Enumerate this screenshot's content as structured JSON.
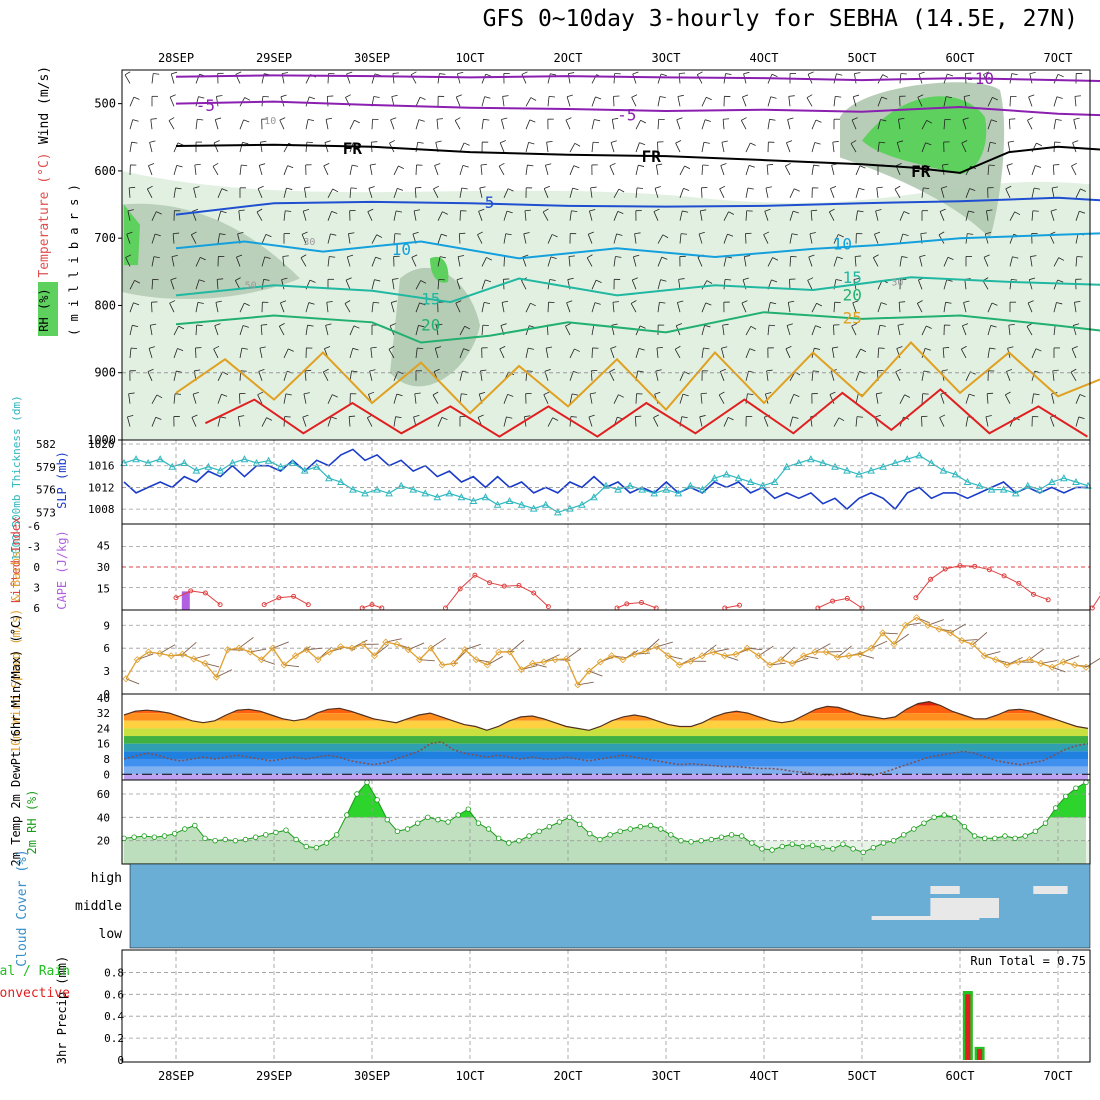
{
  "title": "GFS 0~10day 3-hourly for SEBHA (14.5E, 27N)",
  "colors": {
    "frame": "#000000",
    "grid": "#9a9a9a",
    "freezing": "#000000",
    "temp_cold": "#8a1fb0",
    "temp_blue": "#1f4fd0",
    "temp_cyan": "#14a0dc",
    "temp_teal": "#20b8a0",
    "temp_green": "#22b070",
    "temp_orange": "#e0a020",
    "temp_red": "#e02020",
    "rh_light": "#e2f0e2",
    "rh_mid": "#b0c8b0",
    "rh_high": "#5ed05e",
    "slp": "#1a3cc8",
    "thickness": "#30b8c0",
    "lifted_index": "#e04040",
    "cape": "#b060e0",
    "wind10": "#e0a030",
    "barb": "#806050",
    "rh2m": "#1a9c1a",
    "cloud": "#6aaed6",
    "cloud_patch": "#e8e8e8",
    "precip_total": "#22c022",
    "precip_conv": "#e02020"
  },
  "chart_data": [
    {
      "id": "upper_air",
      "type": "heatmap",
      "ylabel": "( m i l l i b a r s )",
      "legend_labels": [
        "RH (%)",
        "Temperature (°C)",
        "Wind (m/s)"
      ],
      "x_ticks_top": [
        "28SEP",
        "29SEP",
        "30SEP",
        "1OCT",
        "2OCT",
        "3OCT",
        "4OCT",
        "5OCT",
        "6OCT",
        "7OCT"
      ],
      "yticks": [
        "500",
        "600",
        "700",
        "800",
        "900",
        "1000"
      ],
      "ylim": [
        1000,
        450
      ],
      "contour_labels": [
        "-10",
        "-5",
        "-5",
        "FR",
        "FR",
        "FR",
        "5",
        "10",
        "10",
        "15",
        "15",
        "20",
        "20",
        "25"
      ],
      "rh_labels": [
        "30",
        "50",
        "10",
        "30"
      ],
      "isotherms": [
        {
          "name": "-10",
          "color": "temp_cold",
          "x": [
            0,
            1,
            2,
            3,
            4,
            5,
            6,
            7,
            8,
            9,
            9.6
          ],
          "y": [
            460,
            458,
            459,
            461,
            459,
            461,
            462,
            465,
            462,
            465,
            467
          ]
        },
        {
          "name": "-5",
          "color": "temp_cold",
          "x": [
            0,
            1,
            2,
            3,
            4,
            5,
            6,
            7,
            8,
            9,
            9.6
          ],
          "y": [
            500,
            497,
            502,
            506,
            508,
            511,
            509,
            512,
            505,
            515,
            518
          ]
        },
        {
          "name": "FR",
          "color": "freezing",
          "x": [
            0,
            1,
            2,
            3,
            4,
            5,
            6,
            7,
            7.5,
            8,
            8.5,
            9,
            9.6
          ],
          "y": [
            563,
            561,
            564,
            572,
            576,
            578,
            584,
            590,
            595,
            603,
            572,
            564,
            570
          ]
        },
        {
          "name": "5",
          "color": "temp_blue",
          "x": [
            0,
            1,
            2,
            3,
            4,
            5,
            6,
            7,
            8,
            9,
            9.6
          ],
          "y": [
            665,
            648,
            646,
            648,
            652,
            653,
            652,
            648,
            645,
            640,
            645
          ]
        },
        {
          "name": "10",
          "color": "temp_cyan",
          "x": [
            0,
            0.7,
            1.5,
            2.5,
            3.5,
            4.5,
            5.5,
            6.5,
            7.2,
            8,
            9,
            9.6
          ],
          "y": [
            715,
            705,
            720,
            705,
            730,
            715,
            728,
            716,
            710,
            700,
            695,
            692
          ]
        },
        {
          "name": "15",
          "color": "temp_teal",
          "x": [
            0,
            1,
            2,
            2.8,
            3.5,
            4.5,
            5.5,
            6.5,
            7.5,
            8.5,
            9.6
          ],
          "y": [
            785,
            770,
            778,
            795,
            760,
            785,
            770,
            777,
            758,
            765,
            770
          ]
        },
        {
          "name": "20",
          "color": "temp_green",
          "x": [
            0,
            1,
            2,
            2.5,
            3.2,
            4,
            5,
            6,
            7,
            8,
            9,
            9.6
          ],
          "y": [
            828,
            815,
            825,
            855,
            845,
            825,
            840,
            810,
            820,
            815,
            830,
            840
          ]
        },
        {
          "name": "25",
          "color": "temp_orange",
          "x": [
            0,
            0.5,
            1,
            1.5,
            2,
            2.5,
            3,
            3.5,
            4,
            4.5,
            5,
            5.5,
            6,
            6.5,
            7,
            7.5,
            8,
            8.5,
            9,
            9.6
          ],
          "y": [
            930,
            880,
            940,
            870,
            945,
            885,
            960,
            890,
            950,
            880,
            955,
            870,
            945,
            870,
            935,
            855,
            930,
            870,
            935,
            900
          ]
        },
        {
          "name": "30",
          "color": "temp_red",
          "x": [
            0.3,
            0.8,
            1.3,
            1.8,
            2.3,
            2.8,
            3.3,
            3.8,
            4.3,
            4.8,
            5.3,
            5.8,
            6.3,
            6.8,
            7.3,
            7.8,
            8.3,
            8.8,
            9.3
          ],
          "y": [
            975,
            940,
            990,
            945,
            990,
            950,
            995,
            950,
            995,
            945,
            990,
            940,
            990,
            930,
            985,
            925,
            990,
            950,
            995
          ]
        }
      ]
    },
    {
      "id": "pressure",
      "type": "line",
      "ylabel_left": "1000-500mb Thickness (dm)",
      "ylabel_right": "SLP (mb)",
      "left_ticks": [
        "582",
        "579",
        "576",
        "573"
      ],
      "right_ticks": [
        "1020",
        "1016",
        "1012",
        "1008"
      ],
      "series": [
        {
          "name": "SLP (mb)",
          "color": "slp",
          "values": [
            1013,
            1011,
            1012,
            1013,
            1012,
            1014,
            1013,
            1015,
            1014,
            1016,
            1014,
            1016,
            1016,
            1015,
            1017,
            1015,
            1017,
            1016,
            1018,
            1019,
            1017,
            1018,
            1016,
            1017,
            1015,
            1016,
            1014,
            1015,
            1013,
            1014,
            1012,
            1014,
            1012,
            1013,
            1011,
            1012,
            1011,
            1013,
            1012,
            1014,
            1012,
            1013,
            1011,
            1012,
            1011,
            1013,
            1011,
            1012,
            1011,
            1013,
            1012,
            1013,
            1011,
            1012,
            1010,
            1011,
            1010,
            1011,
            1009,
            1010,
            1008,
            1010,
            1011,
            1010,
            1008,
            1011,
            1012,
            1010,
            1011,
            1011,
            1010,
            1011,
            1012,
            1013,
            1011,
            1012,
            1011,
            1012,
            1011,
            1012,
            1012
          ]
        },
        {
          "name": "1000-500mb Thickness (dm)",
          "color": "thickness",
          "values": [
            579.5,
            580,
            579.5,
            580,
            579,
            579.5,
            578.5,
            579,
            578.5,
            579.5,
            580,
            579.5,
            579.8,
            579,
            579.5,
            578.5,
            579,
            577.5,
            577,
            576,
            575.5,
            576,
            575.5,
            576.5,
            576,
            575.5,
            575,
            575.5,
            575,
            574.5,
            575,
            574,
            574.5,
            574,
            573.5,
            574,
            573,
            573.5,
            574,
            575,
            576.5,
            576,
            576.5,
            576,
            575.5,
            576,
            575.5,
            576.5,
            576,
            577.5,
            578,
            577.5,
            577,
            576.5,
            577,
            579,
            579.5,
            580,
            579.5,
            579,
            578.5,
            578,
            578.5,
            579,
            579.5,
            580,
            580.5,
            579.5,
            578.5,
            578,
            577,
            576.5,
            576,
            576,
            575.5,
            576.5,
            576,
            577,
            577.5,
            577,
            576.5
          ]
        }
      ]
    },
    {
      "id": "stability",
      "type": "bar",
      "ylabel_left": "Lifted Index",
      "ylabel_right": "CAPE (J/kg)",
      "li_ticks": [
        "-6",
        "-3",
        "0",
        "3",
        "6"
      ],
      "cape_ticks": [
        "45",
        "30",
        "15"
      ],
      "lifted_index_segments": [
        {
          "x": [
            0,
            0.15,
            0.3,
            0.45
          ],
          "y": [
            4.5,
            3.5,
            3.8,
            5.5
          ]
        },
        {
          "x": [
            0.9,
            1.05,
            1.2,
            1.35
          ],
          "y": [
            5.5,
            4.5,
            4.3,
            5.5
          ]
        },
        {
          "x": [
            1.9,
            2.0,
            2.1
          ],
          "y": [
            6,
            5.5,
            6
          ]
        },
        {
          "x": [
            2.75,
            2.9,
            3.05,
            3.2,
            3.35,
            3.5,
            3.65,
            3.8
          ],
          "y": [
            6,
            3.2,
            1.2,
            2.3,
            2.8,
            2.7,
            3.8,
            5.8
          ]
        },
        {
          "x": [
            4.5,
            4.6,
            4.75,
            4.9
          ],
          "y": [
            6,
            5.4,
            5.2,
            6
          ]
        },
        {
          "x": [
            5.6,
            5.75
          ],
          "y": [
            6,
            5.6
          ]
        },
        {
          "x": [
            6.55,
            6.7,
            6.85,
            7.0
          ],
          "y": [
            6,
            5.0,
            4.6,
            6
          ]
        },
        {
          "x": [
            7.55,
            7.7,
            7.85,
            8.0,
            8.15,
            8.3,
            8.45,
            8.6,
            8.75,
            8.9
          ],
          "y": [
            4.5,
            1.8,
            0.3,
            -0.2,
            -0.1,
            0.4,
            1.3,
            2.4,
            4.0,
            4.8
          ]
        },
        {
          "x": [
            9.35,
            9.45,
            9.55,
            9.65
          ],
          "y": [
            6,
            3.8,
            1.0,
            -0.5
          ]
        }
      ],
      "cape_values": [
        {
          "x": 0.1,
          "value": 13
        },
        {
          "x": 9.62,
          "value": 56
        }
      ]
    },
    {
      "id": "wind10m",
      "type": "line",
      "ylabel": "10m Wind Speed (m/s) & Barbs",
      "yticks": [
        "0",
        "3",
        "6",
        "9"
      ],
      "ylim": [
        0,
        11
      ],
      "values": [
        2,
        4.5,
        5.5,
        5.3,
        5.0,
        5.2,
        4.6,
        4.0,
        2.2,
        5.8,
        6.0,
        5.5,
        4.5,
        6.0,
        3.8,
        5.0,
        5.8,
        4.5,
        5.5,
        6.2,
        6.0,
        6.5,
        5.0,
        6.8,
        6.5,
        5.8,
        4.5,
        6.0,
        3.8,
        4.0,
        5.8,
        4.5,
        3.8,
        5.5,
        5.5,
        3.2,
        4.0,
        4.2,
        4.5,
        4.6,
        1.2,
        3.0,
        4.2,
        5.0,
        4.5,
        5.2,
        5.6,
        6.2,
        5.0,
        3.8,
        4.3,
        5.0,
        5.5,
        5.0,
        5.2,
        6.0,
        5.0,
        3.8,
        4.5,
        4.0,
        5.0,
        5.5,
        5.5,
        4.8,
        5.0,
        5.2,
        6.0,
        8.0,
        6.5,
        9.0,
        10.0,
        9.0,
        8.5,
        8.0,
        7.0,
        6.5,
        5.0,
        4.5,
        3.8,
        4.2,
        4.5,
        4.0,
        3.5,
        4.2,
        3.8,
        3.5
      ]
    },
    {
      "id": "temp2m",
      "type": "area",
      "ylabel": "2m Temp 2m DewPt (6hr Min/Max) (°C)",
      "yticks": [
        "0",
        "8",
        "16",
        "24",
        "32",
        "40"
      ],
      "ylim": [
        -3,
        42
      ],
      "temperature": [
        31,
        33,
        33.5,
        33,
        32,
        30,
        28,
        27,
        28,
        31,
        33.5,
        34,
        33,
        31,
        29,
        28,
        29,
        32,
        34,
        34.5,
        33,
        31,
        29,
        28,
        27,
        29,
        31,
        32,
        30,
        28,
        26,
        25,
        23,
        25,
        28,
        30,
        30.5,
        29,
        27,
        25,
        24,
        23,
        25,
        28,
        30,
        31,
        30,
        28,
        26,
        25,
        25,
        27,
        30,
        32,
        33,
        32,
        30,
        28,
        27,
        28,
        31,
        34,
        35.5,
        35,
        33,
        31,
        30,
        29,
        30,
        34,
        37,
        38,
        36,
        33,
        31,
        29,
        29,
        31,
        33.5,
        34,
        33,
        31,
        29,
        27,
        25,
        24
      ],
      "dewpoint": [
        8,
        9.5,
        11,
        10,
        8,
        7,
        8,
        9,
        8,
        9,
        10,
        9,
        8,
        7,
        8,
        9,
        8,
        9,
        10,
        9,
        7,
        6,
        5,
        6,
        8,
        10,
        12,
        16,
        17,
        13,
        11,
        10,
        9,
        10,
        9,
        8,
        9,
        8,
        8,
        9,
        8,
        7,
        8,
        9,
        10,
        9,
        8,
        7,
        6,
        5,
        5.5,
        5,
        4.5,
        4,
        4,
        3.5,
        3,
        3,
        2.5,
        1.5,
        1,
        0,
        -0.5,
        0,
        0.5,
        0,
        -0.5,
        1,
        3,
        5,
        7,
        9,
        10,
        11,
        12,
        11,
        9,
        7,
        6,
        5,
        6,
        7,
        10,
        13,
        15,
        16
      ]
    },
    {
      "id": "rh2m",
      "type": "area",
      "ylabel": "2m RH (%)",
      "yticks": [
        "20",
        "40",
        "60"
      ],
      "ylim": [
        0,
        72
      ],
      "values": [
        22,
        23,
        24,
        23,
        24,
        26,
        30,
        33,
        22,
        20,
        21,
        20,
        21,
        23,
        25,
        27,
        29,
        21,
        15,
        14,
        18,
        25,
        42,
        60,
        70,
        55,
        38,
        28,
        30,
        35,
        40,
        38,
        36,
        42,
        47,
        35,
        30,
        22,
        18,
        20,
        24,
        28,
        32,
        36,
        40,
        34,
        26,
        21,
        25,
        28,
        30,
        32,
        33,
        30,
        25,
        20,
        19,
        20,
        21,
        23,
        25,
        24,
        18,
        13,
        12,
        15,
        17,
        15,
        16,
        14,
        13,
        17,
        13,
        10,
        14,
        18,
        20,
        25,
        30,
        35,
        40,
        42,
        40,
        32,
        24,
        22,
        22,
        24,
        22,
        24,
        28,
        35,
        48,
        58,
        65,
        70
      ]
    },
    {
      "id": "cloud",
      "type": "heatmap",
      "ylabel": "Cloud Cover (%)",
      "yticks": [
        "high",
        "middle",
        "low"
      ],
      "patches": [
        {
          "level": "low-middle",
          "x_start": 7.2,
          "x_end": 8.3,
          "value": 0.2
        },
        {
          "level": "middle",
          "x_start": 7.8,
          "x_end": 8.0,
          "value": 0.3
        },
        {
          "level": "middle",
          "x_start": 8.0,
          "x_end": 8.5,
          "value": 0.4
        },
        {
          "level": "high",
          "x_start": 7.8,
          "x_end": 8.1,
          "value": 0.2
        },
        {
          "level": "high",
          "x_start": 8.85,
          "x_end": 9.2,
          "value": 0.2
        }
      ]
    },
    {
      "id": "precip",
      "type": "bar",
      "ylabel": "3hr Precip (mm)",
      "legend_labels": [
        "Total / Rain",
        "Convective"
      ],
      "yticks": [
        "0",
        "0.2",
        "0.4",
        "0.6",
        "0.8"
      ],
      "ylim": [
        0,
        0.95
      ],
      "run_total_label": "Run Total = 0.75",
      "bars": [
        {
          "x": 8.08,
          "total": 0.63,
          "convective": 0.6
        },
        {
          "x": 8.2,
          "total": 0.12,
          "convective": 0.1
        }
      ],
      "x_ticks_bottom": [
        "28SEP",
        "29SEP",
        "30SEP",
        "1OCT",
        "2OCT",
        "3OCT",
        "4OCT",
        "5OCT",
        "6OCT",
        "7OCT"
      ]
    }
  ]
}
